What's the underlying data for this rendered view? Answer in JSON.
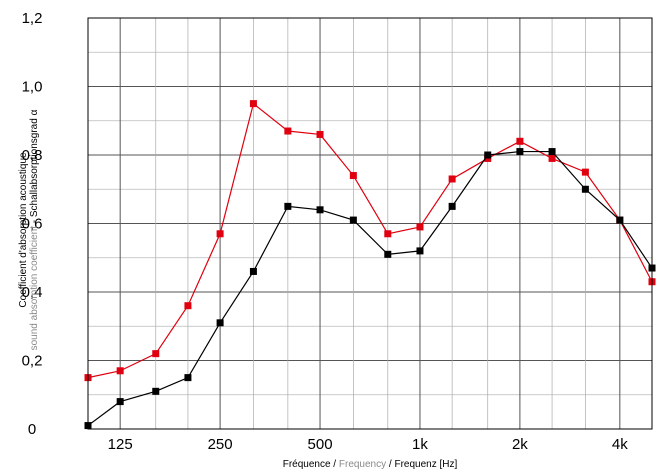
{
  "chart_data": {
    "type": "line",
    "xscale": "log",
    "x": [
      100,
      125,
      160,
      200,
      250,
      315,
      400,
      500,
      630,
      800,
      1000,
      1250,
      1600,
      2000,
      2500,
      3150,
      4000,
      5000
    ],
    "x_tick_labels": [
      "125",
      "250",
      "500",
      "1k",
      "2k",
      "4k"
    ],
    "x_tick_values": [
      125,
      250,
      500,
      1000,
      2000,
      4000
    ],
    "xlim": [
      100,
      5000
    ],
    "ylim": [
      0,
      1.2
    ],
    "y_tick_values": [
      0,
      0.2,
      0.4,
      0.6,
      0.8,
      1.0,
      1.2
    ],
    "y_tick_labels": [
      "0",
      "0,2",
      "0,4",
      "0,6",
      "0,8",
      "1,0",
      "1,2"
    ],
    "grid": true,
    "ylabel": {
      "line1": "Coefficient d'absorption acoustique",
      "line2_part1": "sound absorption coefficient",
      "line2_part2": " - Schallabsorptionsgrad α"
    },
    "xlabel": {
      "part1": "Fréquence / ",
      "part2": "Frequency",
      "part3": " / Frequenz  [Hz]"
    },
    "series": [
      {
        "color": "#e0000f",
        "values": [
          0.15,
          0.17,
          0.22,
          0.36,
          0.57,
          0.95,
          0.87,
          0.86,
          0.74,
          0.57,
          0.59,
          0.73,
          0.79,
          0.84,
          0.79,
          0.75,
          0.61,
          0.43
        ]
      },
      {
        "color": "#000000",
        "values": [
          0.01,
          0.08,
          0.11,
          0.15,
          0.31,
          0.46,
          0.65,
          0.64,
          0.61,
          0.51,
          0.52,
          0.65,
          0.8,
          0.81,
          0.81,
          0.7,
          0.61,
          0.47
        ]
      }
    ]
  }
}
